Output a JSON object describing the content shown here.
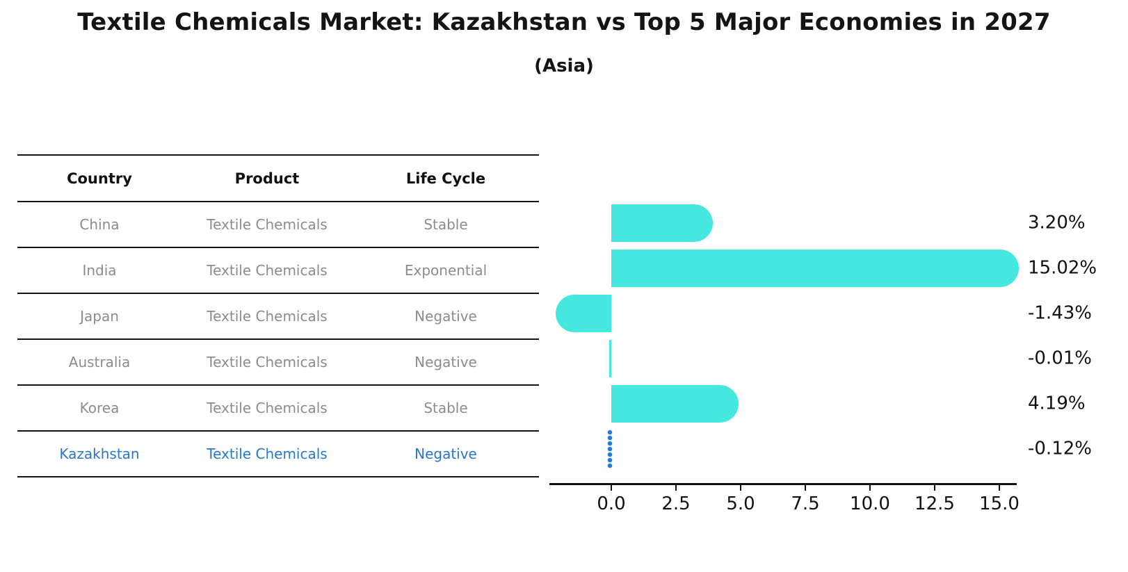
{
  "header": {
    "title": "Textile Chemicals Market: Kazakhstan vs Top 5 Major Economies in 2027",
    "subtitle": "(Asia)"
  },
  "table": {
    "columns": [
      "Country",
      "Product",
      "Life Cycle"
    ],
    "rows": [
      {
        "country": "China",
        "product": "Textile Chemicals",
        "life_cycle": "Stable",
        "highlighted": false
      },
      {
        "country": "India",
        "product": "Textile Chemicals",
        "life_cycle": "Exponential",
        "highlighted": false
      },
      {
        "country": "Japan",
        "product": "Textile Chemicals",
        "life_cycle": "Negative",
        "highlighted": false
      },
      {
        "country": "Australia",
        "product": "Textile Chemicals",
        "life_cycle": "Negative",
        "highlighted": false
      },
      {
        "country": "Korea",
        "product": "Textile Chemicals",
        "life_cycle": "Stable",
        "highlighted": false
      },
      {
        "country": "Kazakhstan",
        "product": "Textile Chemicals",
        "life_cycle": "Negative",
        "highlighted": true
      }
    ]
  },
  "chart_data": {
    "type": "bar",
    "orientation": "horizontal",
    "title": "Textile Chemicals Market: Kazakhstan vs Top 5 Major Economies in 2027",
    "subtitle": "(Asia)",
    "categories": [
      "China",
      "India",
      "Japan",
      "Australia",
      "Korea",
      "Kazakhstan"
    ],
    "values": [
      3.2,
      15.02,
      -1.43,
      -0.01,
      4.19,
      -0.12
    ],
    "value_labels": [
      "3.20%",
      "15.02%",
      "-1.43%",
      "-0.01%",
      "4.19%",
      "-0.12%"
    ],
    "x_tick_labels": [
      "0.0",
      "2.5",
      "5.0",
      "7.5",
      "10.0",
      "12.5",
      "15.0"
    ],
    "x_ticks": [
      0.0,
      2.5,
      5.0,
      7.5,
      10.0,
      12.5,
      15.0
    ],
    "xlim": [
      -2.4,
      15.7
    ],
    "xlabel": "",
    "ylabel": "",
    "grid": false,
    "legend": false,
    "highlight_category": "Kazakhstan",
    "highlight_style": "dotted-outline-bar"
  },
  "colors": {
    "bar": "#45E7DF",
    "highlight": "#2B7CE0",
    "highlight_text": "#2878CB",
    "table_text": "#8C8C8C",
    "header_text": "#111111",
    "line": "#141414",
    "axis": "#111111"
  }
}
